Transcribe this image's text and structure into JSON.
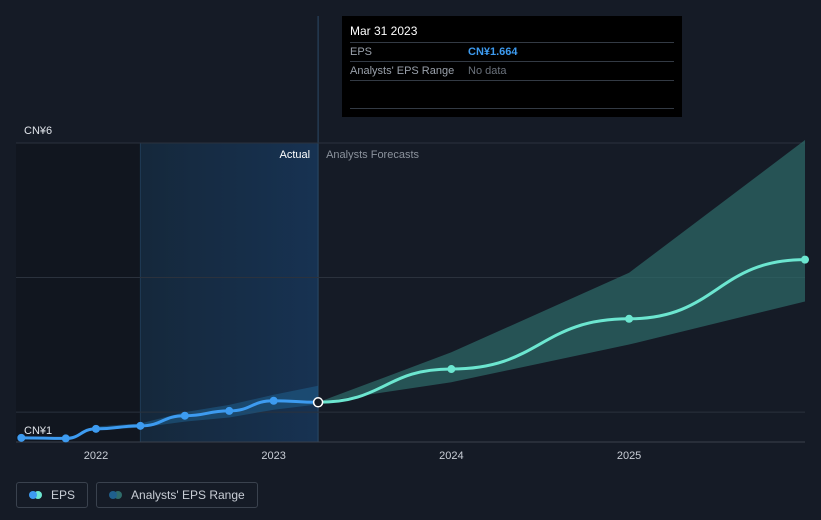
{
  "chart_data": {
    "type": "line",
    "y_axis": {
      "unit_prefix": "CN¥",
      "ylim": [
        1,
        6
      ],
      "tick_labels": [
        "CN¥6",
        "CN¥1"
      ]
    },
    "x_axis": {
      "xlim": [
        2021.55,
        2025.99
      ],
      "tick_labels": [
        "2022",
        "2023",
        "2024",
        "2025"
      ],
      "ticks": [
        2022,
        2023,
        2024,
        2025
      ]
    },
    "regions": {
      "actual_label": "Actual",
      "forecast_label": "Analysts Forecasts",
      "divider_x": 2023.25,
      "highlight_start_x": 2022.25
    },
    "series": [
      {
        "name": "EPS",
        "color": "#3d9bf0",
        "points": [
          {
            "x": 2021.58,
            "y": 1.07
          },
          {
            "x": 2021.83,
            "y": 1.06
          },
          {
            "x": 2022.0,
            "y": 1.22
          },
          {
            "x": 2022.25,
            "y": 1.27
          },
          {
            "x": 2022.5,
            "y": 1.44
          },
          {
            "x": 2022.75,
            "y": 1.52
          },
          {
            "x": 2023.0,
            "y": 1.69
          },
          {
            "x": 2023.25,
            "y": 1.664
          }
        ]
      },
      {
        "name": "EPS forecast",
        "color": "#6ce6d0",
        "points": [
          {
            "x": 2023.25,
            "y": 1.664
          },
          {
            "x": 2024.0,
            "y": 2.22
          },
          {
            "x": 2025.0,
            "y": 3.06
          },
          {
            "x": 2026.0,
            "y": 4.05
          }
        ]
      }
    ],
    "range_actual": {
      "x": [
        2022.0,
        2022.25,
        2022.5,
        2022.75,
        2023.0,
        2023.25
      ],
      "low": [
        1.2,
        1.24,
        1.34,
        1.41,
        1.54,
        1.63
      ],
      "high": [
        1.26,
        1.31,
        1.5,
        1.62,
        1.79,
        1.94
      ]
    },
    "range_forecast": {
      "x": [
        2023.25,
        2024.0,
        2025.0,
        2026.0
      ],
      "low": [
        1.664,
        2.0,
        2.63,
        3.35
      ],
      "high": [
        1.664,
        2.5,
        3.83,
        6.05
      ]
    }
  },
  "tooltip": {
    "date": "Mar 31 2023",
    "eps_label": "EPS",
    "eps_value": "CN¥1.664",
    "range_label": "Analysts' EPS Range",
    "range_value": "No data"
  },
  "legend": [
    {
      "label": "EPS",
      "colors": [
        "#3d9bf0",
        "#6ce6d0"
      ]
    },
    {
      "label": "Analysts' EPS Range",
      "colors": [
        "#1f5f8c",
        "#2e6b6a"
      ]
    }
  ]
}
